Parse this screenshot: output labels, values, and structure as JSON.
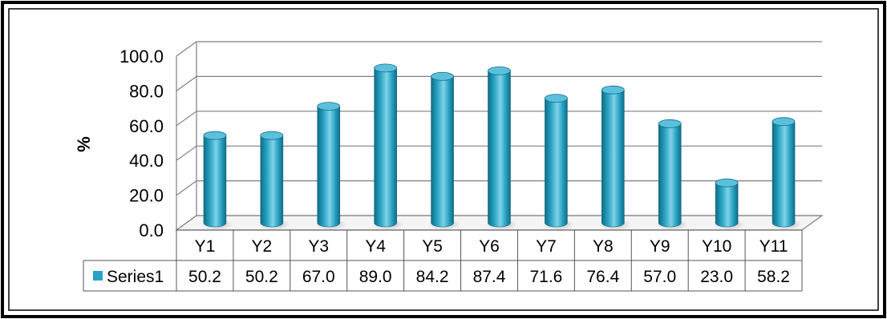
{
  "chart_data": {
    "type": "bar",
    "categories": [
      "Y1",
      "Y2",
      "Y3",
      "Y4",
      "Y5",
      "Y6",
      "Y7",
      "Y8",
      "Y9",
      "Y10",
      "Y11"
    ],
    "series": [
      {
        "name": "Series1",
        "values": [
          50.2,
          50.2,
          67.0,
          89.0,
          84.2,
          87.4,
          71.6,
          76.4,
          57.0,
          23.0,
          58.2
        ]
      }
    ],
    "value_labels": [
      "50.2",
      "50.2",
      "67.0",
      "89.0",
      "84.2",
      "87.4",
      "71.6",
      "76.4",
      "57.0",
      "23.0",
      "58.2"
    ],
    "ylabel": "%",
    "xlabel": "",
    "title": "",
    "ylim": [
      0,
      100
    ],
    "y_ticks": [
      "0.0",
      "20.0",
      "40.0",
      "60.0",
      "80.0",
      "100.0"
    ],
    "grid": true,
    "bar_shape": "cylinder-3d",
    "legend": "data-table",
    "colors": {
      "bar": "#2aa3c4",
      "bar_dark": "#0f6c86",
      "bar_light": "#7fd3e8",
      "bar_top": "#5cc0dc",
      "grid": "#7f7f7f",
      "frame": "#000000"
    }
  }
}
